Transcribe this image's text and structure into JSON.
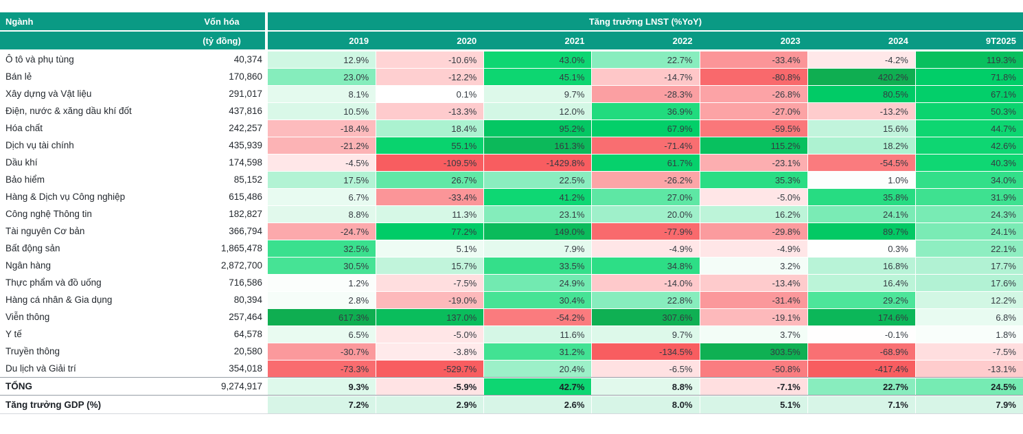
{
  "header": {
    "sector_col": "Ngành",
    "cap_col": "Vốn hóa",
    "cap_unit": "(tỷ đồng)",
    "group_title": "Tăng trưởng LNST (%YoY)"
  },
  "colors": {
    "header_bg": "#0a9a84",
    "header_text": "#ffffff",
    "gdp_cell_bg": "#d7f5e7",
    "grid_line": "#ffffff",
    "rule_dark": "#959ca4",
    "rule_light": "#d4d8dd",
    "positive_scale": [
      [
        0,
        "#ffffff"
      ],
      [
        8,
        "#e4faee"
      ],
      [
        15,
        "#c6f5de"
      ],
      [
        22,
        "#8feec2"
      ],
      [
        28,
        "#54e69e"
      ],
      [
        40,
        "#0fd773"
      ],
      [
        75,
        "#00cd67"
      ],
      [
        120,
        "#09c05e"
      ],
      [
        200,
        "#0eb356"
      ],
      [
        400,
        "#0fae51"
      ]
    ],
    "negative_scale": [
      [
        0,
        "#ffffff"
      ],
      [
        4,
        "#ffe9ea"
      ],
      [
        10,
        "#ffd6d7"
      ],
      [
        18,
        "#fdbcbe"
      ],
      [
        30,
        "#fb9a9d"
      ],
      [
        50,
        "#fa7e81"
      ],
      [
        75,
        "#f96b6e"
      ],
      [
        110,
        "#f85d60"
      ]
    ]
  },
  "chart_data": {
    "type": "heatmap",
    "title": "Tăng trưởng LNST (%YoY)",
    "cap_unit": "tỷ đồng",
    "columns": [
      "2019",
      "2020",
      "2021",
      "2022",
      "2023",
      "2024",
      "9T2025"
    ],
    "rows": [
      {
        "sector": "Ô tô và phụ tùng",
        "market_cap": 40374,
        "growth": [
          12.9,
          -10.6,
          43.0,
          22.7,
          -33.4,
          -4.2,
          119.3
        ]
      },
      {
        "sector": "Bán lẻ",
        "market_cap": 170860,
        "growth": [
          23.0,
          -12.2,
          45.1,
          -14.7,
          -80.8,
          420.2,
          71.8
        ]
      },
      {
        "sector": "Xây dựng và Vật liệu",
        "market_cap": 291017,
        "growth": [
          8.1,
          0.1,
          9.7,
          -28.3,
          -26.8,
          80.5,
          67.1
        ]
      },
      {
        "sector": "Điện, nước & xăng dầu khí đốt",
        "market_cap": 437816,
        "growth": [
          10.5,
          -13.3,
          12.0,
          36.9,
          -27.0,
          -13.2,
          50.3
        ]
      },
      {
        "sector": "Hóa chất",
        "market_cap": 242257,
        "growth": [
          -18.4,
          18.4,
          95.2,
          67.9,
          -59.5,
          15.6,
          44.7
        ]
      },
      {
        "sector": "Dịch vụ tài chính",
        "market_cap": 435939,
        "growth": [
          -21.2,
          55.1,
          161.3,
          -71.4,
          115.2,
          18.2,
          42.6
        ]
      },
      {
        "sector": "Dầu khí",
        "market_cap": 174598,
        "growth": [
          -4.5,
          -109.5,
          -1429.8,
          61.7,
          -23.1,
          -54.5,
          40.3
        ]
      },
      {
        "sector": "Bảo hiểm",
        "market_cap": 85152,
        "growth": [
          17.5,
          26.7,
          22.5,
          -26.2,
          35.3,
          1.0,
          34.0
        ]
      },
      {
        "sector": "Hàng & Dịch vụ Công nghiệp",
        "market_cap": 615486,
        "growth": [
          6.7,
          -33.4,
          41.2,
          27.0,
          -5.0,
          35.8,
          31.9
        ]
      },
      {
        "sector": "Công nghệ Thông tin",
        "market_cap": 182827,
        "growth": [
          8.8,
          11.3,
          23.1,
          20.0,
          16.2,
          24.1,
          24.3
        ]
      },
      {
        "sector": "Tài nguyên Cơ bản",
        "market_cap": 366794,
        "growth": [
          -24.7,
          77.2,
          149.0,
          -77.9,
          -29.8,
          89.7,
          24.1
        ]
      },
      {
        "sector": "Bất động sản",
        "market_cap": 1865478,
        "growth": [
          32.5,
          5.1,
          7.9,
          -4.9,
          -4.9,
          0.3,
          22.1
        ]
      },
      {
        "sector": "Ngân hàng",
        "market_cap": 2872700,
        "growth": [
          30.5,
          15.7,
          33.5,
          34.8,
          3.2,
          16.8,
          17.7
        ]
      },
      {
        "sector": "Thực phẩm và đồ uống",
        "market_cap": 716586,
        "growth": [
          1.2,
          -7.5,
          24.9,
          -14.0,
          -13.4,
          16.4,
          17.6
        ]
      },
      {
        "sector": "Hàng cá nhân & Gia dụng",
        "market_cap": 80394,
        "growth": [
          2.8,
          -19.0,
          30.4,
          22.8,
          -31.4,
          29.2,
          12.2
        ]
      },
      {
        "sector": "Viễn thông",
        "market_cap": 257464,
        "growth": [
          617.3,
          137.0,
          -54.2,
          307.6,
          -19.1,
          174.6,
          6.8
        ]
      },
      {
        "sector": "Y tế",
        "market_cap": 64578,
        "growth": [
          6.5,
          -5.0,
          11.6,
          9.7,
          3.7,
          -0.1,
          1.8
        ]
      },
      {
        "sector": "Truyền thông",
        "market_cap": 20580,
        "growth": [
          -30.7,
          -3.8,
          31.2,
          -134.5,
          303.5,
          -68.9,
          -7.5
        ]
      },
      {
        "sector": "Du lịch và Giải trí",
        "market_cap": 354018,
        "growth": [
          -73.3,
          -529.7,
          20.4,
          -6.5,
          -50.8,
          -417.4,
          -13.1
        ]
      }
    ],
    "total": {
      "sector": "TỔNG",
      "market_cap": 9274917,
      "growth": [
        9.3,
        -5.9,
        42.7,
        8.8,
        -7.1,
        22.7,
        24.5
      ]
    },
    "gdp": {
      "sector": "Tăng trưởng GDP (%)",
      "growth": [
        7.2,
        2.9,
        2.6,
        8.0,
        5.1,
        7.1,
        7.9
      ]
    }
  }
}
